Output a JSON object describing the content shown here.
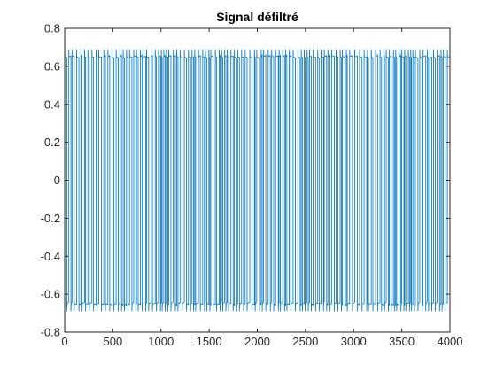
{
  "chart_data": {
    "type": "line",
    "title": "Signal défiltré",
    "xlabel": "",
    "ylabel": "",
    "xlim": [
      0,
      4000
    ],
    "ylim": [
      -0.8,
      0.8
    ],
    "x_ticks": [
      0,
      500,
      1000,
      1500,
      2000,
      2500,
      3000,
      3500,
      4000
    ],
    "x_tick_labels": [
      "0",
      "500",
      "1000",
      "1500",
      "2000",
      "2500",
      "3000",
      "3500",
      "4000"
    ],
    "y_ticks": [
      0.8,
      0.6,
      0.4,
      0.2,
      0,
      -0.2,
      -0.4,
      -0.6,
      -0.8
    ],
    "y_tick_labels": [
      "0.8",
      "0.6",
      "0.4",
      "0.2",
      "0",
      "-0.2",
      "-0.4",
      "-0.6",
      "-0.8"
    ],
    "grid": false,
    "series": [
      {
        "color": "#0072BD",
        "description": "Rapidly alternating binary-like signal between approximately +0.65 and -0.65 with brief overshoots to about ±0.69, over sample indices 0–4000",
        "high_level": 0.65,
        "low_level": -0.65,
        "overshoot": 0.69,
        "n_samples": 4000
      }
    ]
  }
}
